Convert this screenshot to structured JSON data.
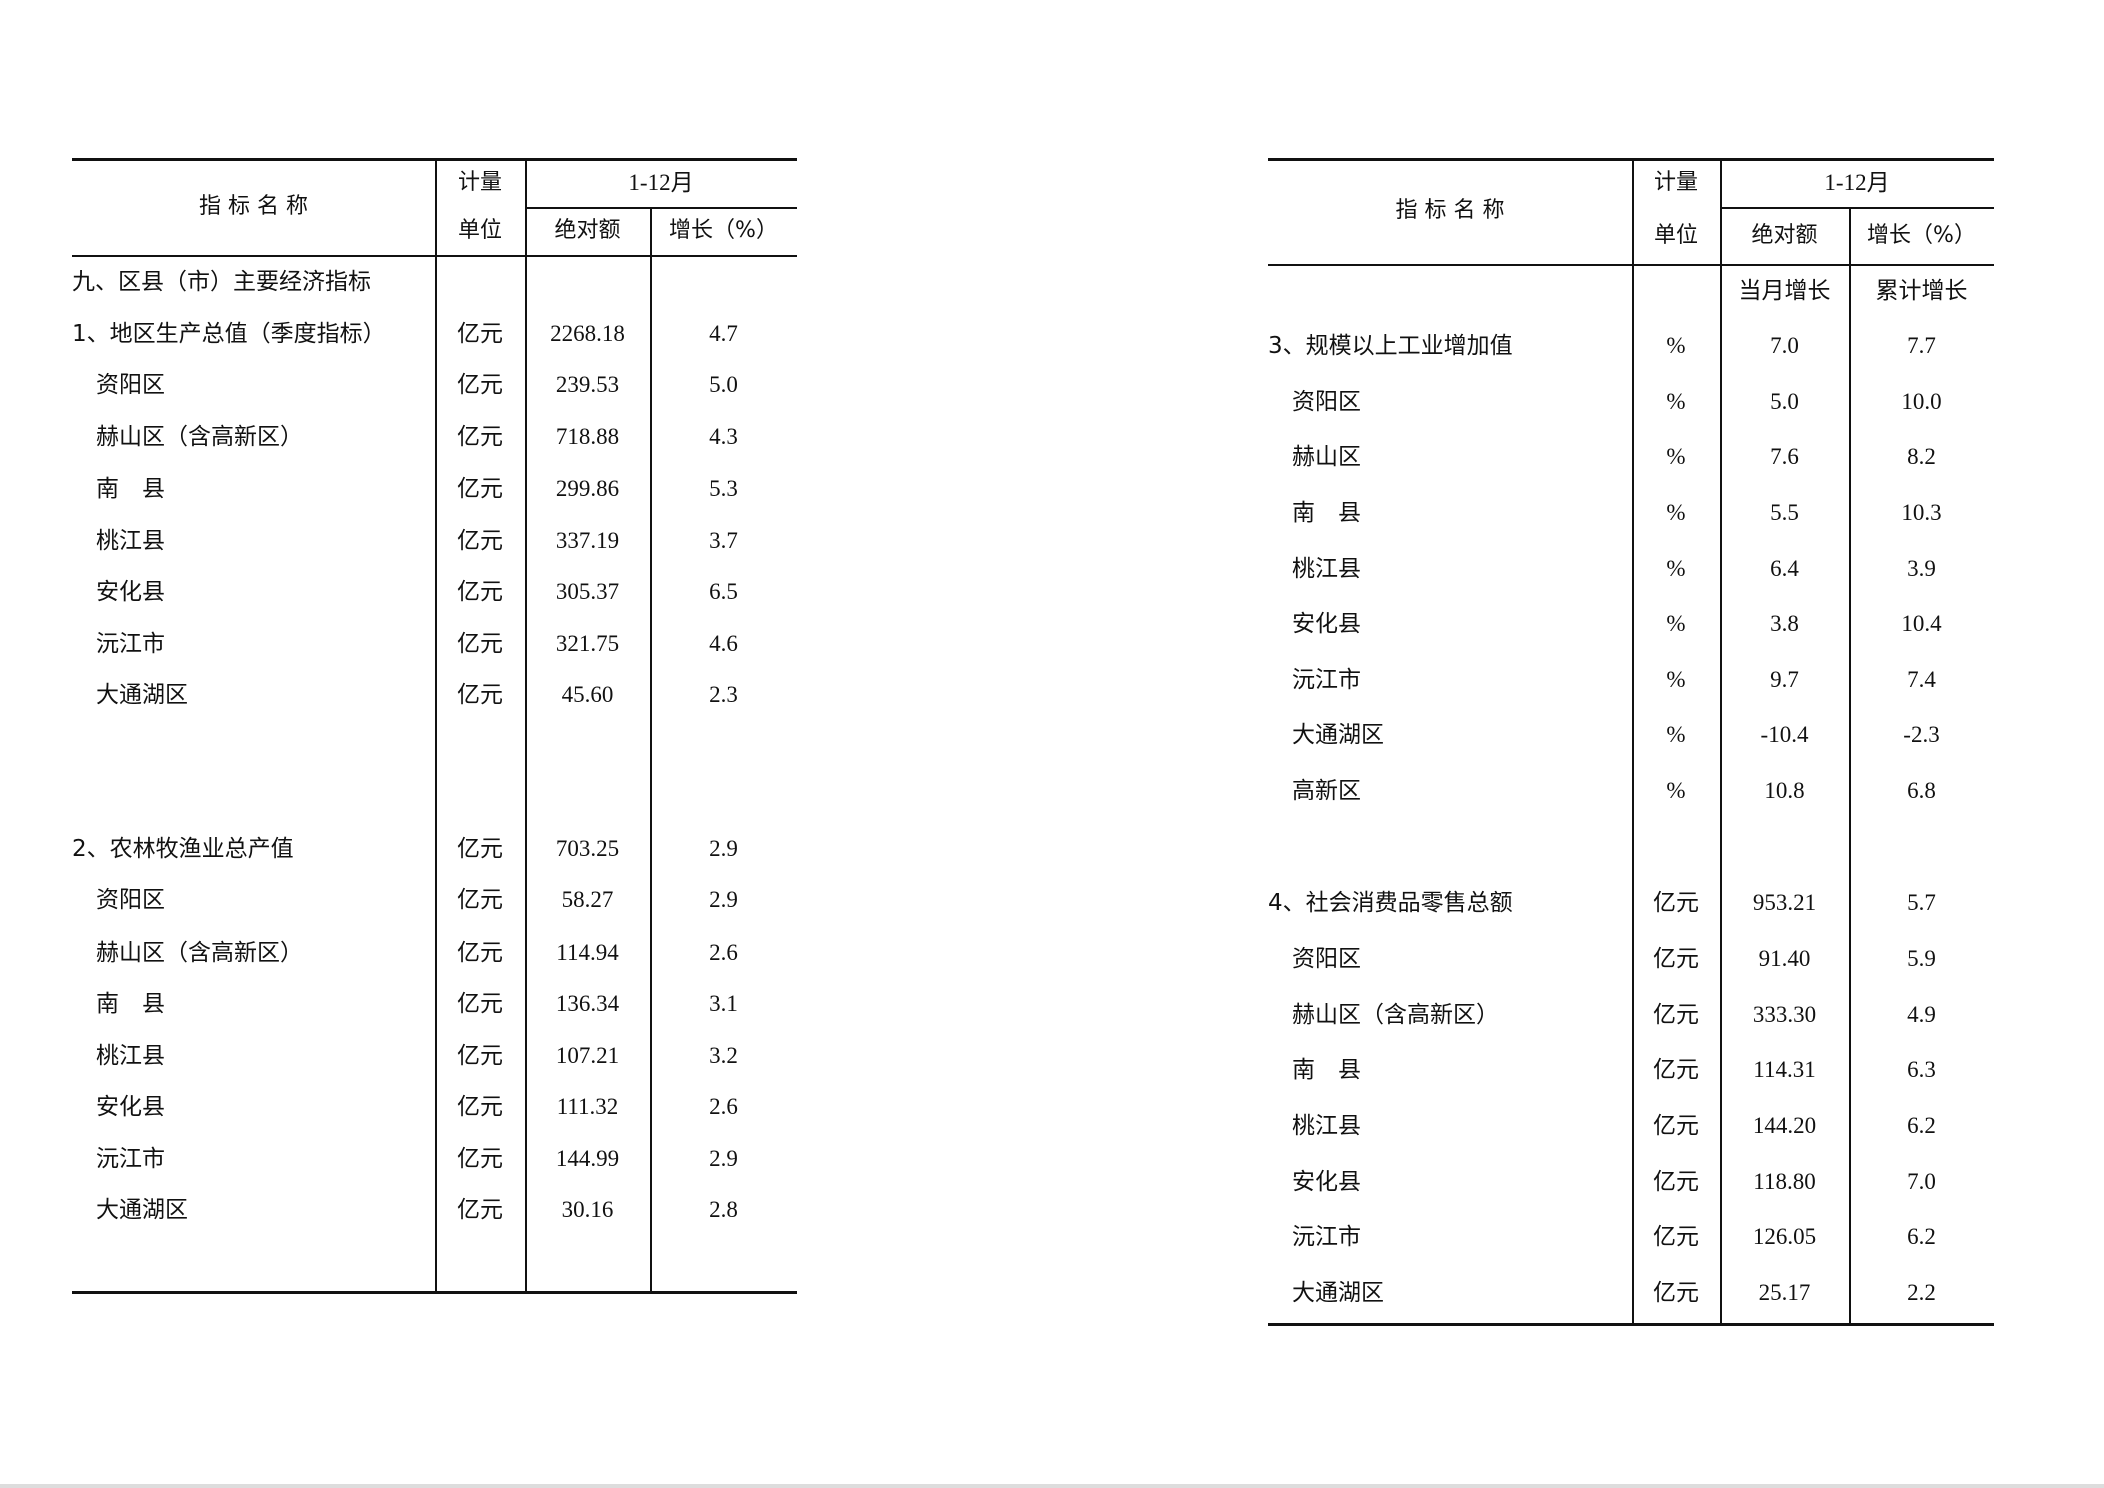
{
  "tables": [
    {
      "header": {
        "name": "指 标 名 称",
        "unit_line1": "计量",
        "unit_line2": "单位",
        "period": "1-12月",
        "col_value": "绝对额",
        "col_growth": "增长（%）"
      },
      "subheader": null,
      "rows": [
        {
          "name": "九、区县（市）主要经济指标",
          "unit": "",
          "value": "",
          "growth": "",
          "level": 0
        },
        {
          "name": "1、地区生产总值（季度指标）",
          "unit": "亿元",
          "value": "2268.18",
          "growth": "4.7",
          "level": 0
        },
        {
          "name": "资阳区",
          "unit": "亿元",
          "value": "239.53",
          "growth": "5.0",
          "level": 1
        },
        {
          "name": "赫山区（含高新区）",
          "unit": "亿元",
          "value": "718.88",
          "growth": "4.3",
          "level": 1
        },
        {
          "name": "南　县",
          "unit": "亿元",
          "value": "299.86",
          "growth": "5.3",
          "level": 1
        },
        {
          "name": "桃江县",
          "unit": "亿元",
          "value": "337.19",
          "growth": "3.7",
          "level": 1
        },
        {
          "name": "安化县",
          "unit": "亿元",
          "value": "305.37",
          "growth": "6.5",
          "level": 1
        },
        {
          "name": "沅江市",
          "unit": "亿元",
          "value": "321.75",
          "growth": "4.6",
          "level": 1
        },
        {
          "name": "大通湖区",
          "unit": "亿元",
          "value": "45.60",
          "growth": "2.3",
          "level": 1
        },
        {
          "name": "2、农林牧渔业总产值",
          "unit": "亿元",
          "value": "703.25",
          "growth": "2.9",
          "level": 0
        },
        {
          "name": "资阳区",
          "unit": "亿元",
          "value": "58.27",
          "growth": "2.9",
          "level": 1
        },
        {
          "name": "赫山区（含高新区）",
          "unit": "亿元",
          "value": "114.94",
          "growth": "2.6",
          "level": 1
        },
        {
          "name": "南　县",
          "unit": "亿元",
          "value": "136.34",
          "growth": "3.1",
          "level": 1
        },
        {
          "name": "桃江县",
          "unit": "亿元",
          "value": "107.21",
          "growth": "3.2",
          "level": 1
        },
        {
          "name": "安化县",
          "unit": "亿元",
          "value": "111.32",
          "growth": "2.6",
          "level": 1
        },
        {
          "name": "沅江市",
          "unit": "亿元",
          "value": "144.99",
          "growth": "2.9",
          "level": 1
        },
        {
          "name": "大通湖区",
          "unit": "亿元",
          "value": "30.16",
          "growth": "2.8",
          "level": 1
        }
      ]
    },
    {
      "header": {
        "name": "指 标 名 称",
        "unit_line1": "计量",
        "unit_line2": "单位",
        "period": "1-12月",
        "col_value": "绝对额",
        "col_growth": "增长（%）"
      },
      "subheader": {
        "value": "当月增长",
        "growth": "累计增长"
      },
      "rows": [
        {
          "name": "3、规模以上工业增加值",
          "unit": "%",
          "value": "7.0",
          "growth": "7.7",
          "level": 0
        },
        {
          "name": "资阳区",
          "unit": "%",
          "value": "5.0",
          "growth": "10.0",
          "level": 1
        },
        {
          "name": "赫山区",
          "unit": "%",
          "value": "7.6",
          "growth": "8.2",
          "level": 1
        },
        {
          "name": "南　县",
          "unit": "%",
          "value": "5.5",
          "growth": "10.3",
          "level": 1
        },
        {
          "name": "桃江县",
          "unit": "%",
          "value": "6.4",
          "growth": "3.9",
          "level": 1
        },
        {
          "name": "安化县",
          "unit": "%",
          "value": "3.8",
          "growth": "10.4",
          "level": 1
        },
        {
          "name": "沅江市",
          "unit": "%",
          "value": "9.7",
          "growth": "7.4",
          "level": 1
        },
        {
          "name": "大通湖区",
          "unit": "%",
          "value": "-10.4",
          "growth": "-2.3",
          "level": 1
        },
        {
          "name": "高新区",
          "unit": "%",
          "value": "10.8",
          "growth": "6.8",
          "level": 1
        },
        {
          "name": "4、社会消费品零售总额",
          "unit": "亿元",
          "value": "953.21",
          "growth": "5.7",
          "level": 0
        },
        {
          "name": "资阳区",
          "unit": "亿元",
          "value": "91.40",
          "growth": "5.9",
          "level": 1
        },
        {
          "name": "赫山区（含高新区）",
          "unit": "亿元",
          "value": "333.30",
          "growth": "4.9",
          "level": 1
        },
        {
          "name": "南　县",
          "unit": "亿元",
          "value": "114.31",
          "growth": "6.3",
          "level": 1
        },
        {
          "name": "桃江县",
          "unit": "亿元",
          "value": "144.20",
          "growth": "6.2",
          "level": 1
        },
        {
          "name": "安化县",
          "unit": "亿元",
          "value": "118.80",
          "growth": "7.0",
          "level": 1
        },
        {
          "name": "沅江市",
          "unit": "亿元",
          "value": "126.05",
          "growth": "6.2",
          "level": 1
        },
        {
          "name": "大通湖区",
          "unit": "亿元",
          "value": "25.17",
          "growth": "2.2",
          "level": 1
        }
      ]
    }
  ]
}
